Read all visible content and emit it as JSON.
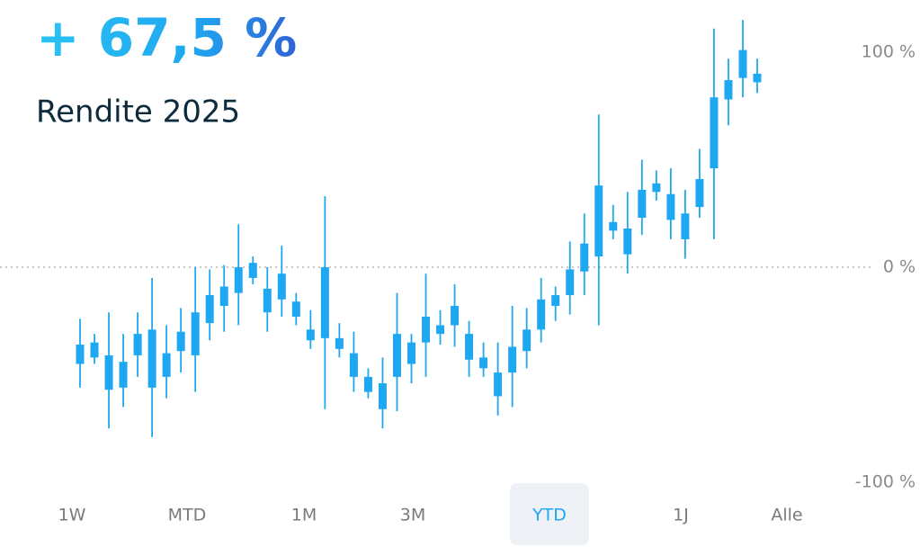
{
  "chart_data": {
    "type": "candlestick",
    "title": "+ 67,5 %",
    "subtitle": "Rendite 2025",
    "color": "#1ea8f2",
    "open": [
      -45,
      -42,
      -57,
      -56,
      -41,
      -56,
      -51,
      -39,
      -41,
      -26,
      -18,
      -12,
      -5,
      -21,
      -15,
      -23,
      -34,
      -33,
      -38,
      -51,
      -58,
      -66,
      -51,
      -45,
      -35,
      -31,
      -27,
      -43,
      -47,
      -60,
      -49,
      -39,
      -29,
      -18,
      -13,
      -2,
      5,
      17,
      6,
      23,
      35,
      22,
      13,
      28,
      46,
      78,
      88,
      86
    ],
    "high": [
      -24,
      -31,
      -21,
      -31,
      -21,
      -5,
      -27,
      -19,
      0,
      -1,
      1,
      20,
      5,
      0,
      10,
      -12,
      -20,
      33,
      -26,
      -30,
      -47,
      -42,
      -12,
      -31,
      -3,
      -20,
      -8,
      -25,
      -35,
      -35,
      -18,
      -19,
      -5,
      -9,
      12,
      25,
      71,
      29,
      35,
      50,
      45,
      46,
      36,
      55,
      111,
      97,
      115,
      97
    ],
    "low": [
      -56,
      -45,
      -75,
      -65,
      -51,
      -79,
      -61,
      -49,
      -58,
      -34,
      -30,
      -27,
      -8,
      -30,
      -23,
      -27,
      -38,
      -66,
      -42,
      -58,
      -61,
      -75,
      -67,
      -54,
      -51,
      -36,
      -37,
      -51,
      -51,
      -69,
      -65,
      -47,
      -35,
      -25,
      -22,
      -13,
      -27,
      13,
      -3,
      15,
      31,
      13,
      4,
      23,
      13,
      66,
      79,
      81
    ],
    "close": [
      -36,
      -35,
      -41,
      -44,
      -31,
      -29,
      -40,
      -30,
      -21,
      -13,
      -9,
      0,
      2,
      -10,
      -3,
      -16,
      -29,
      0,
      -33,
      -40,
      -51,
      -54,
      -31,
      -35,
      -23,
      -27,
      -18,
      -31,
      -42,
      -49,
      -37,
      -29,
      -15,
      -13,
      -1,
      11,
      38,
      21,
      18,
      36,
      39,
      34,
      25,
      41,
      79,
      87,
      101,
      90
    ],
    "ylim": [
      -100,
      120
    ],
    "yticks": [
      {
        "value": 100,
        "label": "100 %"
      },
      {
        "value": 0,
        "label": "0 %"
      },
      {
        "value": -100,
        "label": "-100 %"
      }
    ],
    "zero_line": true
  },
  "range_buttons": [
    "1W",
    "MTD",
    "1M",
    "3M",
    "YTD",
    "1J",
    "Alle"
  ],
  "selected_range": "YTD"
}
